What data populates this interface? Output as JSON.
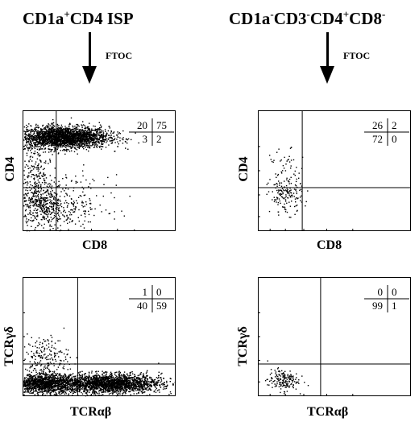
{
  "columns": [
    {
      "title_parts": [
        {
          "t": "CD1a",
          "sup": false
        },
        {
          "t": "+",
          "sup": true
        },
        {
          "t": "CD4 ISP",
          "sup": false
        }
      ],
      "arrow_label": "FTOC"
    },
    {
      "title_parts": [
        {
          "t": "CD1a",
          "sup": false
        },
        {
          "t": "-",
          "sup": true
        },
        {
          "t": "CD3",
          "sup": false
        },
        {
          "t": "-",
          "sup": true
        },
        {
          "t": "CD4",
          "sup": false
        },
        {
          "t": "+",
          "sup": true
        },
        {
          "t": "CD8",
          "sup": false
        },
        {
          "t": "-",
          "sup": true
        }
      ],
      "arrow_label": "FTOC"
    }
  ],
  "chart_data": [
    {
      "type": "scatter",
      "xlabel": "CD8",
      "ylabel": "CD4",
      "quadrants": {
        "upper_left": "20",
        "upper_right": "75",
        "lower_left": "3",
        "lower_right": "2"
      },
      "populations": [
        {
          "cx": 0.26,
          "cy": 0.78,
          "sx": 0.15,
          "sy": 0.045,
          "n": 2600
        },
        {
          "cx": 0.12,
          "cy": 0.22,
          "sx": 0.07,
          "sy": 0.09,
          "n": 380
        },
        {
          "cx": 0.28,
          "cy": 0.22,
          "sx": 0.14,
          "sy": 0.12,
          "n": 260
        },
        {
          "cx": 0.08,
          "cy": 0.48,
          "sx": 0.05,
          "sy": 0.14,
          "n": 180
        }
      ]
    },
    {
      "type": "scatter",
      "xlabel": "CD8",
      "ylabel": "CD4",
      "quadrants": {
        "upper_left": "26",
        "upper_right": "2",
        "lower_left": "72",
        "lower_right": "0"
      },
      "populations": [
        {
          "cx": 0.18,
          "cy": 0.3,
          "sx": 0.055,
          "sy": 0.075,
          "n": 150
        },
        {
          "cx": 0.18,
          "cy": 0.52,
          "sx": 0.05,
          "sy": 0.08,
          "n": 45
        }
      ]
    },
    {
      "type": "scatter",
      "xlabel": "TCRαβ",
      "ylabel": "TCRγδ",
      "quadrants": {
        "upper_left": "1",
        "upper_right": "0",
        "lower_left": "40",
        "lower_right": "59"
      },
      "populations": [
        {
          "cx": 0.14,
          "cy": 0.11,
          "sx": 0.1,
          "sy": 0.04,
          "n": 1300
        },
        {
          "cx": 0.56,
          "cy": 0.11,
          "sx": 0.17,
          "sy": 0.04,
          "n": 2200
        },
        {
          "cx": 0.14,
          "cy": 0.33,
          "sx": 0.08,
          "sy": 0.09,
          "n": 200
        }
      ]
    },
    {
      "type": "scatter",
      "xlabel": "TCRαβ",
      "ylabel": "TCRγδ",
      "quadrants": {
        "upper_left": "0",
        "upper_right": "0",
        "lower_left": "99",
        "lower_right": "1"
      },
      "populations": [
        {
          "cx": 0.16,
          "cy": 0.14,
          "sx": 0.05,
          "sy": 0.045,
          "n": 170
        }
      ]
    }
  ]
}
